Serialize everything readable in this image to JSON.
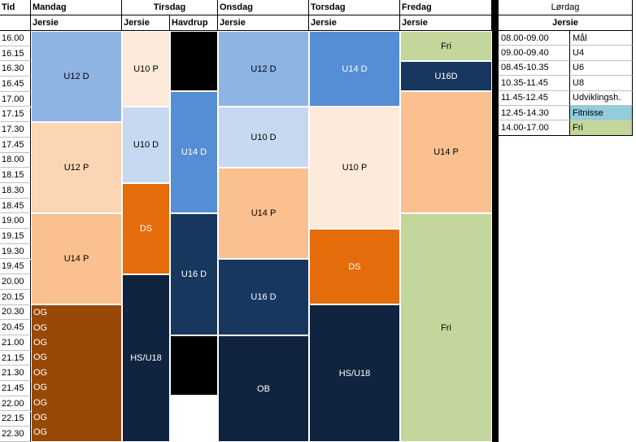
{
  "headers": {
    "tid": "Tid",
    "mandag": "Mandag",
    "tirsdag": "Tirsdag",
    "onsdag": "Onsdag",
    "torsdag": "Torsdag",
    "fredag": "Fredag",
    "lordag": "Lørdag"
  },
  "subheaders": {
    "mandag": "Jersie",
    "tirsdag_jersie": "Jersie",
    "tirsdag_havdrup": "Havdrup",
    "onsdag": "Jersie",
    "torsdag": "Jersie",
    "fredag": "Jersie",
    "lordag": "Jersie"
  },
  "times": [
    "16.00",
    "16.15",
    "16.30",
    "16.45",
    "17.00",
    "17.15",
    "17.30",
    "17.45",
    "18.00",
    "18.15",
    "18.30",
    "18.45",
    "19.00",
    "19.15",
    "19.30",
    "19.45",
    "20.00",
    "20.15",
    "20.30",
    "20.45",
    "21.00",
    "21.15",
    "21.30",
    "21.45",
    "22.00",
    "22.15",
    "22.30"
  ],
  "blocks": {
    "mon_u12d": "U12 D",
    "mon_u12p": "U12 P",
    "mon_u14p": "U14 P",
    "mon_og": [
      "OG",
      "OG",
      "OG",
      "OG",
      "OG",
      "OG",
      "OG",
      "OG",
      "OG"
    ],
    "tue_u10p": "U10 P",
    "tue_u10d": "U10 D",
    "tue_ds": "DS",
    "tue_hsu18": "HS/U18",
    "hav_u14d": "U14 D",
    "hav_u16d": "U16 D",
    "wed_u12d": "U12 D",
    "wed_u10d": "U10 D",
    "wed_u14p": "U14 P",
    "wed_u16d": "U16 D",
    "wed_ob": "OB",
    "thu_u14d": "U14 D",
    "thu_u10p": "U10 P",
    "thu_ds": "DS",
    "thu_hsu18": "HS/U18",
    "fri_fri1": "Fri",
    "fri_u16d": "U16D",
    "fri_u14p": "U14 P",
    "fri_fri2": "Fri"
  },
  "saturday": [
    {
      "time": "08.00-09.00",
      "activity": "Mål"
    },
    {
      "time": "09.00-09.40",
      "activity": "U4"
    },
    {
      "time": "08.45-10.35",
      "activity": "U6"
    },
    {
      "time": "10.35-11.45",
      "activity": "U8"
    },
    {
      "time": "11.45-12.45",
      "activity": "Udviklingsh."
    },
    {
      "time": "12.45-14.30",
      "activity": "Fitnisse"
    },
    {
      "time": "14.00-17.00",
      "activity": "Fri"
    }
  ],
  "colors": {
    "light_blue": "#8eb4e3",
    "pale_blue": "#c6d9f1",
    "mid_blue": "#558ed5",
    "navy": "#17375e",
    "dark_navy": "#10243f",
    "peach": "#fcd5b5",
    "pale_peach": "#fdeada",
    "light_orange": "#fac090",
    "orange": "#e46c0a",
    "brown": "#984807",
    "green": "#c3d69b",
    "teal": "#93cddd",
    "black": "#000000"
  }
}
